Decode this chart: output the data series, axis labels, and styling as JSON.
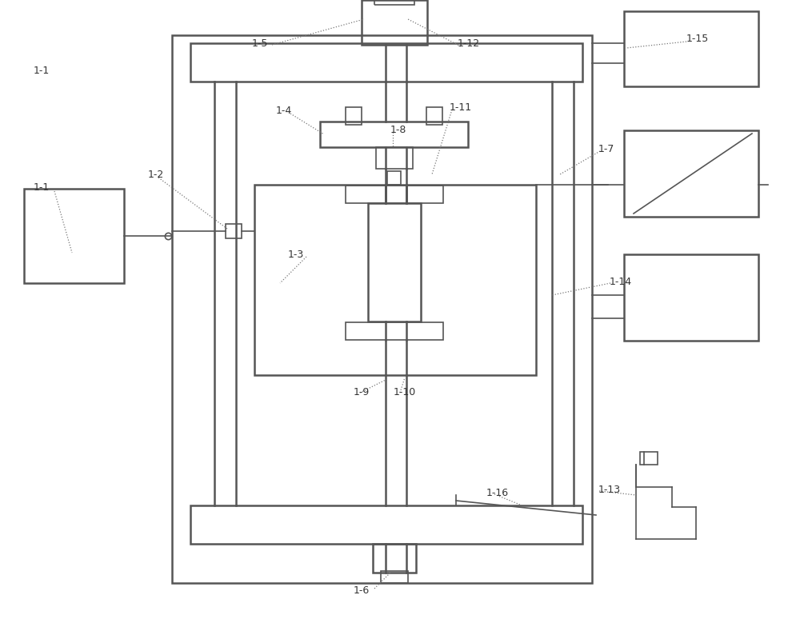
{
  "bg_color": "#ffffff",
  "lc": "#888888",
  "lw": 1.2,
  "lw2": 1.8,
  "label_color": "#333333",
  "label_fs": 9,
  "dot_color": "#777777",
  "dot_lw": 0.9
}
